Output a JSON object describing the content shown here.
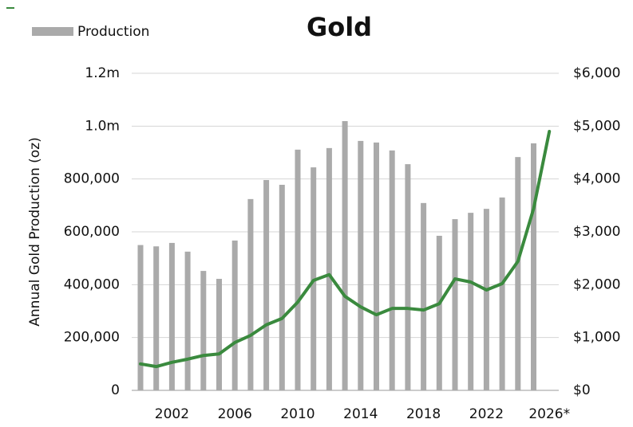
{
  "chart_data": {
    "type": "bar_line",
    "title": "Gold",
    "y_label": "Annual Gold Production (oz)",
    "categories": [
      null,
      null,
      "2002",
      null,
      null,
      null,
      "2006",
      null,
      null,
      null,
      "2010",
      null,
      null,
      null,
      "2014",
      null,
      null,
      null,
      "2018",
      null,
      null,
      null,
      "2022",
      null,
      null,
      null,
      "2026*"
    ],
    "series": [
      {
        "name": "Production",
        "type": "bar",
        "color": "#aaaaaa",
        "values": [
          550000,
          545000,
          558000,
          525000,
          452000,
          422000,
          567000,
          724000,
          796000,
          778000,
          911000,
          844000,
          917000,
          1019000,
          944000,
          938000,
          908000,
          856000,
          709000,
          585000,
          648000,
          672000,
          687000,
          730000,
          883000,
          935000,
          null
        ]
      },
      {
        "type": "line",
        "color": "#3a8a3e",
        "axis": "y2",
        "values": [
          500,
          450,
          530,
          590,
          660,
          690,
          905,
          1040,
          1240,
          1360,
          1670,
          2080,
          2190,
          1780,
          1580,
          1430,
          1550,
          1550,
          1520,
          1640,
          2110,
          2050,
          1900,
          2020,
          2440,
          3440,
          4900
        ]
      }
    ],
    "ylim": [
      0,
      1200000
    ],
    "yticks": [
      0,
      {
        "value": 200000,
        "label": "200,000"
      },
      {
        "value": 400000,
        "label": "400,000"
      },
      {
        "value": 600000,
        "label": "600,000"
      },
      {
        "value": 800000,
        "label": "800,000"
      },
      {
        "value": 1000000,
        "label": "1.0m"
      },
      {
        "value": 1200000,
        "label": "1.2m"
      }
    ],
    "y2lim": [
      0,
      6000
    ],
    "y2ticks": [
      {
        "value": 0,
        "label": "$0"
      },
      {
        "value": 1000,
        "label": "$1,000"
      },
      {
        "value": 2000,
        "label": "$2,000"
      },
      {
        "value": 3000,
        "label": "$3,000"
      },
      {
        "value": 4000,
        "label": "$4,000"
      },
      {
        "value": 5000,
        "label": "$5,000"
      },
      {
        "value": 6000,
        "label": "$6,000"
      }
    ],
    "grid": true,
    "legend": "top-left"
  }
}
